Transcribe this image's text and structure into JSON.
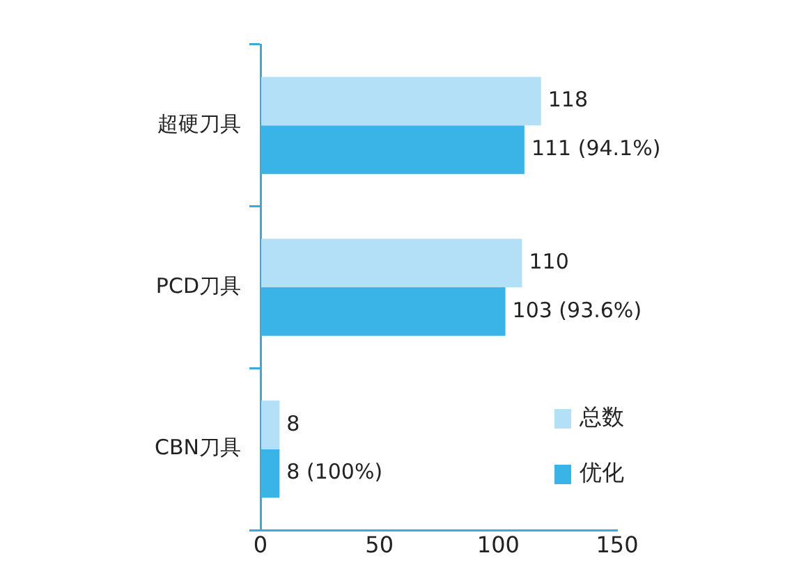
{
  "chart_data": {
    "type": "bar",
    "orientation": "horizontal",
    "categories": [
      "超硬刀具",
      "PCD刀具",
      "CBN刀具"
    ],
    "series": [
      {
        "name": "总数",
        "color": "#b3e0f7",
        "values": [
          118,
          110,
          8
        ],
        "value_labels": [
          "118",
          "110",
          "8"
        ]
      },
      {
        "name": "优化",
        "color": "#3ab4e6",
        "values": [
          111,
          103,
          8
        ],
        "value_labels": [
          "111 (94.1%)",
          "103 (93.6%)",
          "8 (100%)"
        ]
      }
    ],
    "xlim": [
      0,
      150
    ],
    "xticks": [
      0,
      50,
      100,
      150
    ],
    "grid": false,
    "legend": "bottom right"
  }
}
